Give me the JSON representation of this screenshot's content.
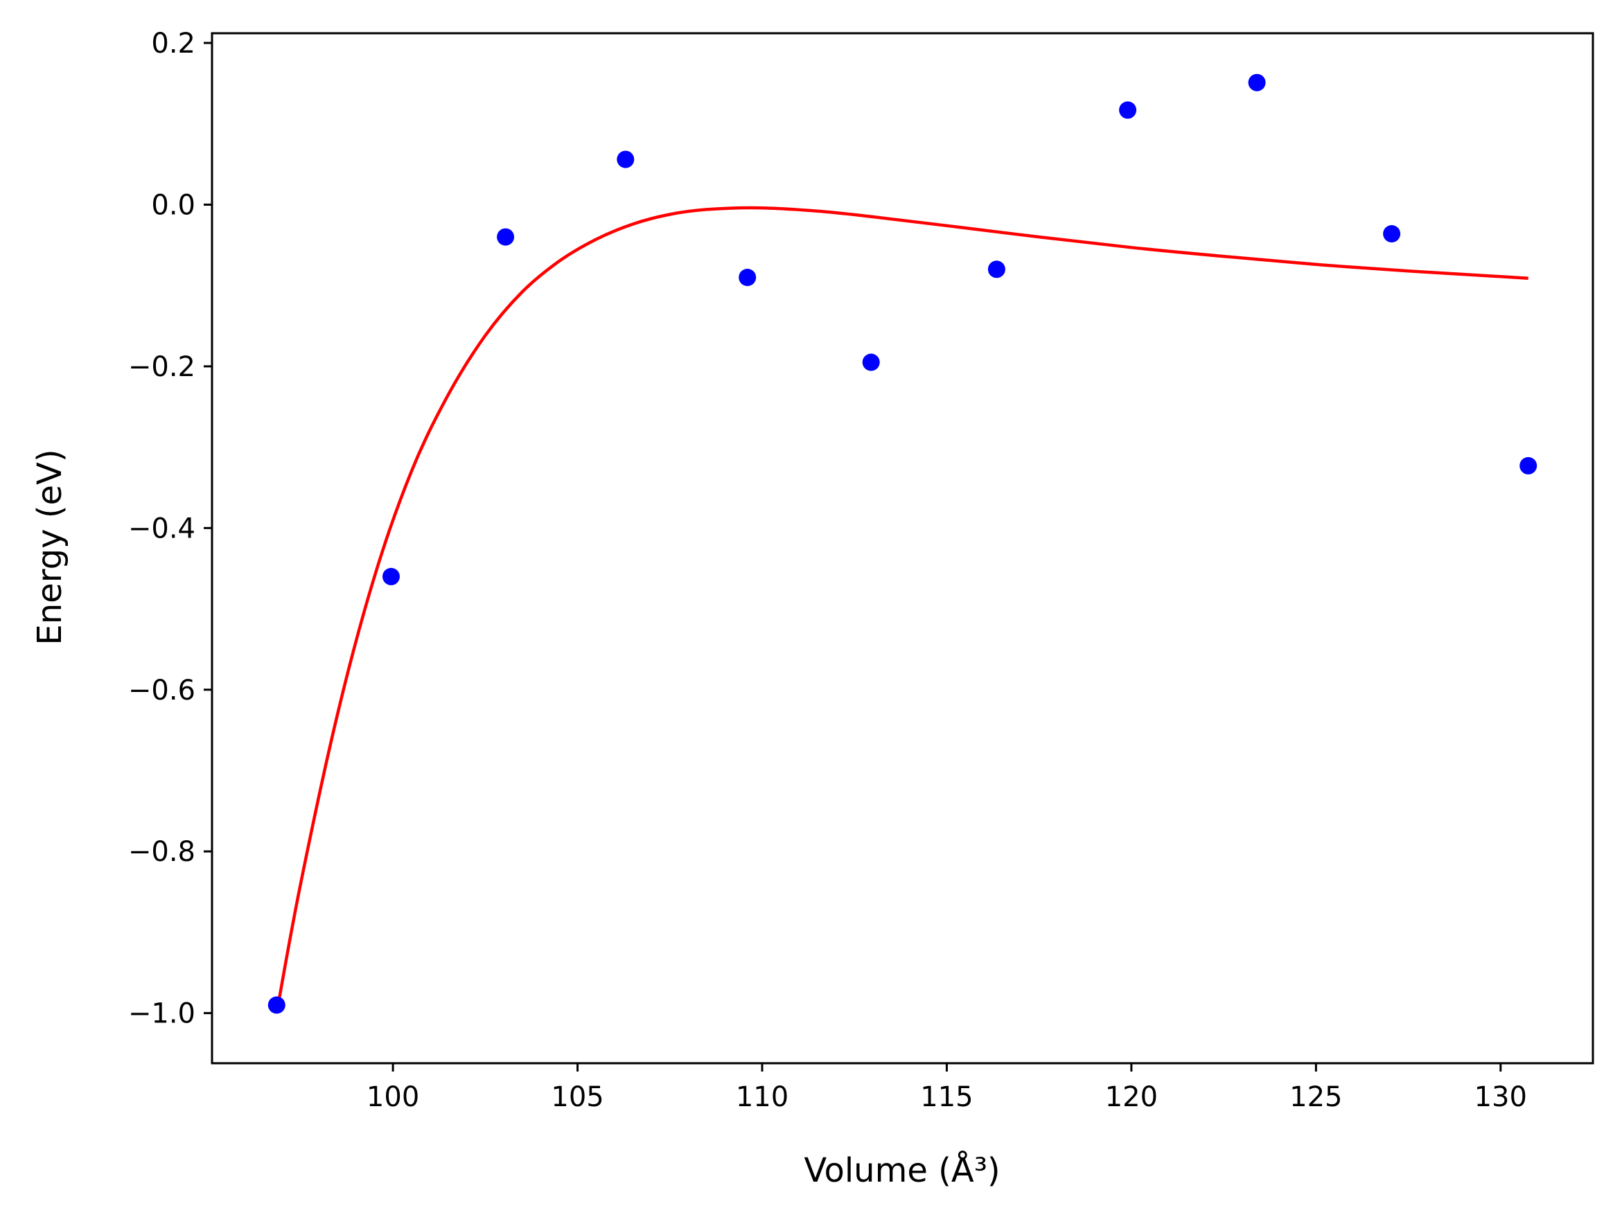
{
  "chart_data": {
    "type": "scatter",
    "xlabel": "Volume (Å³)",
    "ylabel": "Energy (eV)",
    "xlim": [
      95.1,
      132.5
    ],
    "ylim": [
      -1.062,
      0.212
    ],
    "xticks": [
      100,
      105,
      110,
      115,
      120,
      125,
      130
    ],
    "xtick_labels": [
      "100",
      "105",
      "110",
      "115",
      "120",
      "125",
      "130"
    ],
    "yticks": [
      -1.0,
      -0.8,
      -0.6,
      -0.4,
      -0.2,
      0.0,
      0.2
    ],
    "ytick_labels": [
      "−1.0",
      "−0.8",
      "−0.6",
      "−0.4",
      "−0.2",
      "0.0",
      "0.2"
    ],
    "grid": false,
    "series": [
      {
        "type": "scatter",
        "color": "#0000ff",
        "points": [
          [
            96.85,
            -0.99
          ],
          [
            99.95,
            -0.46
          ],
          [
            103.05,
            -0.04
          ],
          [
            106.3,
            0.056
          ],
          [
            109.6,
            -0.09
          ],
          [
            112.95,
            -0.195
          ],
          [
            116.35,
            -0.08
          ],
          [
            119.9,
            0.117
          ],
          [
            123.4,
            0.151
          ],
          [
            127.05,
            -0.036
          ],
          [
            130.75,
            -0.323
          ]
        ]
      },
      {
        "type": "line",
        "color": "#ff0000",
        "points": [
          [
            96.85,
            -1.0
          ],
          [
            97.5,
            -0.84
          ],
          [
            98.5,
            -0.63
          ],
          [
            99.5,
            -0.46
          ],
          [
            100.5,
            -0.33
          ],
          [
            101.5,
            -0.235
          ],
          [
            102.5,
            -0.162
          ],
          [
            103.5,
            -0.108
          ],
          [
            104.5,
            -0.07
          ],
          [
            105.5,
            -0.043
          ],
          [
            106.5,
            -0.024
          ],
          [
            107.5,
            -0.012
          ],
          [
            108.5,
            -0.006
          ],
          [
            109.9,
            -0.004
          ],
          [
            111.5,
            -0.008
          ],
          [
            113.0,
            -0.015
          ],
          [
            115.0,
            -0.026
          ],
          [
            117.5,
            -0.04
          ],
          [
            120.0,
            -0.053
          ],
          [
            122.5,
            -0.064
          ],
          [
            125.0,
            -0.074
          ],
          [
            127.5,
            -0.082
          ],
          [
            130.75,
            -0.091
          ]
        ]
      }
    ]
  }
}
